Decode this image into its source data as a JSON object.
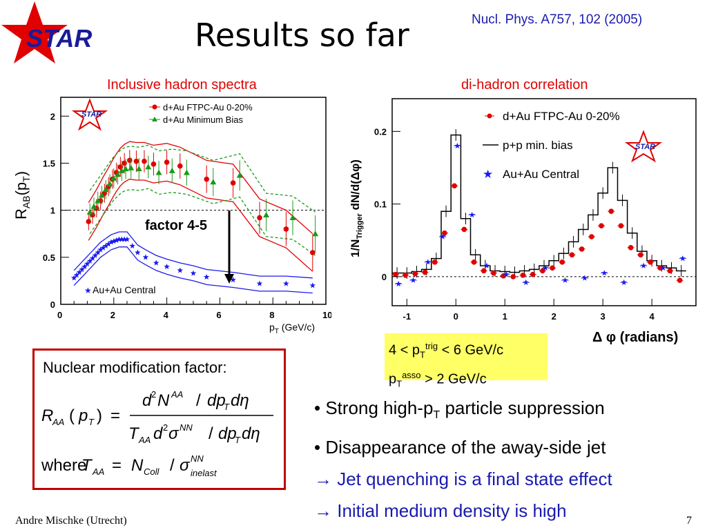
{
  "slide": {
    "title": "Results so far",
    "reference": "Nucl. Phys. A757, 102 (2005)",
    "logo_text": "STAR",
    "footer_author": "Andre Mischke (Utrecht)",
    "page_number": "7"
  },
  "captions": {
    "left": "Inclusive hadron spectra",
    "right": "di-hadron correlation"
  },
  "formula": {
    "heading": "Nuclear modification factor:",
    "where_word": "where"
  },
  "bullets": {
    "b1_pre": "• Strong high-p",
    "b1_sub": "T",
    "b1_post": " particle suppression",
    "b2": "• Disappearance of the away-side jet",
    "b3": "→ Jet quenching is a final state effect",
    "b4": "→ Initial medium density is high"
  },
  "cut_box": {
    "line1_a": "4 < p",
    "line1_sub": "T",
    "line1_sup": "trig",
    "line1_b": " < 6 GeV/c",
    "line2_a": "p",
    "line2_sub": "T",
    "line2_sup": "asso",
    "line2_b": " > 2 GeV/c"
  },
  "colors": {
    "red": "#e00000",
    "green": "#1a9a1a",
    "blue": "#1a1af0",
    "box_border": "#c00000",
    "yellow_box": "#ffff66"
  },
  "chart_data": [
    {
      "type": "scatter",
      "ylabel_main": "R",
      "ylabel_sub": "AB",
      "ylabel_tail": "(p",
      "ylabel_sub2": "T",
      "ylabel_close": ")",
      "xlabel": "p",
      "xlabel_sub": "T",
      "xlabel_tail": " (GeV/c)",
      "xlim": [
        0,
        10
      ],
      "ylim": [
        0,
        2.2
      ],
      "xticks": [
        "0",
        "2",
        "4",
        "6",
        "8",
        "10"
      ],
      "yticks": [
        "0",
        "0.5",
        "1",
        "1.5",
        "2"
      ],
      "reference_line": 1,
      "annotation": "factor 4-5",
      "series": [
        {
          "name": "d+Au FTPC-Au 0-20%",
          "marker": "circle",
          "color": "#e00000",
          "x": [
            1.05,
            1.2,
            1.35,
            1.5,
            1.65,
            1.8,
            1.95,
            2.1,
            2.25,
            2.4,
            2.6,
            2.85,
            3.15,
            3.5,
            4.0,
            4.5,
            5.5,
            6.5,
            7.5,
            8.5,
            9.5
          ],
          "y": [
            0.88,
            0.95,
            1.02,
            1.1,
            1.18,
            1.25,
            1.33,
            1.4,
            1.46,
            1.5,
            1.53,
            1.52,
            1.52,
            1.49,
            1.51,
            1.47,
            1.33,
            1.29,
            0.92,
            0.8,
            0.55
          ]
        },
        {
          "name": "d+Au Minimum Bias",
          "marker": "triangle",
          "color": "#1a9a1a",
          "x": [
            1.1,
            1.25,
            1.4,
            1.55,
            1.7,
            1.85,
            2.0,
            2.15,
            2.3,
            2.45,
            2.65,
            2.95,
            3.3,
            3.7,
            4.2,
            4.75,
            5.75,
            6.75,
            7.75,
            8.75,
            9.6
          ],
          "y": [
            0.98,
            1.04,
            1.1,
            1.16,
            1.22,
            1.28,
            1.34,
            1.38,
            1.42,
            1.44,
            1.45,
            1.44,
            1.46,
            1.4,
            1.42,
            1.4,
            1.3,
            1.37,
            0.95,
            0.92,
            0.75
          ]
        },
        {
          "name": "Au+Au Central",
          "marker": "star",
          "color": "#1a1af0",
          "x": [
            0.5,
            0.6,
            0.7,
            0.8,
            0.9,
            1.0,
            1.1,
            1.2,
            1.3,
            1.4,
            1.5,
            1.6,
            1.7,
            1.8,
            1.9,
            2.0,
            2.1,
            2.2,
            2.3,
            2.4,
            2.5,
            2.7,
            2.9,
            3.2,
            3.6,
            4.0,
            4.5,
            5.0,
            5.5,
            6.5,
            7.5,
            8.5,
            9.5
          ],
          "y": [
            0.28,
            0.31,
            0.34,
            0.37,
            0.4,
            0.43,
            0.46,
            0.49,
            0.52,
            0.55,
            0.58,
            0.6,
            0.62,
            0.64,
            0.66,
            0.67,
            0.68,
            0.69,
            0.69,
            0.69,
            0.69,
            0.62,
            0.55,
            0.5,
            0.44,
            0.4,
            0.36,
            0.33,
            0.29,
            0.26,
            0.22,
            0.22,
            0.2
          ]
        }
      ]
    },
    {
      "type": "line",
      "ylabel": "1/N",
      "ylabel_sub": "Trigger",
      "ylabel_tail": " dN/d(Δφ)",
      "xlabel": "Δ φ (radians)",
      "xlim": [
        -1.3,
        4.9
      ],
      "ylim": [
        -0.04,
        0.245
      ],
      "xticks": [
        "-1",
        "0",
        "1",
        "2",
        "3",
        "4"
      ],
      "yticks": [
        "0",
        "0.1",
        "0.2"
      ],
      "reference_line": 0,
      "series": [
        {
          "name": "p+p min. bias",
          "marker": "line",
          "color": "#000000",
          "x": [
            -1.2,
            -1.0,
            -0.8,
            -0.6,
            -0.4,
            -0.2,
            0.0,
            0.2,
            0.4,
            0.6,
            0.8,
            1.0,
            1.2,
            1.4,
            1.6,
            1.8,
            2.0,
            2.2,
            2.4,
            2.6,
            2.8,
            3.0,
            3.2,
            3.4,
            3.6,
            3.8,
            4.0,
            4.2,
            4.4,
            4.6
          ],
          "y": [
            0.005,
            0.005,
            0.007,
            0.01,
            0.025,
            0.09,
            0.195,
            0.08,
            0.03,
            0.015,
            0.008,
            0.007,
            0.006,
            0.008,
            0.01,
            0.015,
            0.022,
            0.032,
            0.048,
            0.065,
            0.085,
            0.115,
            0.15,
            0.105,
            0.06,
            0.035,
            0.022,
            0.015,
            0.012,
            0.008
          ]
        },
        {
          "name": "d+Au FTPC-Au 0-20%",
          "marker": "circle",
          "color": "#e00000",
          "x": [
            -1.2,
            -1.0,
            -0.8,
            -0.6,
            -0.4,
            -0.2,
            0.0,
            0.2,
            0.4,
            0.6,
            0.8,
            1.0,
            1.2,
            1.4,
            1.6,
            1.8,
            2.0,
            2.2,
            2.4,
            2.6,
            2.8,
            3.0,
            3.2,
            3.4,
            3.6,
            3.8,
            4.0,
            4.2,
            4.4,
            4.6
          ],
          "y": [
            0.003,
            0.002,
            0.004,
            0.006,
            0.02,
            0.06,
            0.125,
            0.065,
            0.02,
            0.008,
            0.005,
            0.001,
            0.0,
            0.002,
            0.003,
            0.008,
            0.012,
            0.02,
            0.03,
            0.038,
            0.055,
            0.07,
            0.09,
            0.07,
            0.04,
            0.03,
            0.02,
            0.012,
            0.008,
            -0.005
          ]
        },
        {
          "name": "Au+Au Central",
          "marker": "star",
          "color": "#1a1af0",
          "x": [
            -1.2,
            -0.9,
            -0.6,
            -0.3,
            0.0,
            0.3,
            0.6,
            1.0,
            1.4,
            1.8,
            2.2,
            2.6,
            3.0,
            3.4,
            3.8,
            4.2,
            4.6
          ],
          "y": [
            -0.01,
            -0.005,
            0.02,
            0.055,
            0.18,
            0.085,
            0.015,
            0.003,
            -0.008,
            0.012,
            -0.005,
            -0.002,
            0.005,
            -0.008,
            0.015,
            0.012,
            0.025
          ]
        }
      ]
    }
  ]
}
